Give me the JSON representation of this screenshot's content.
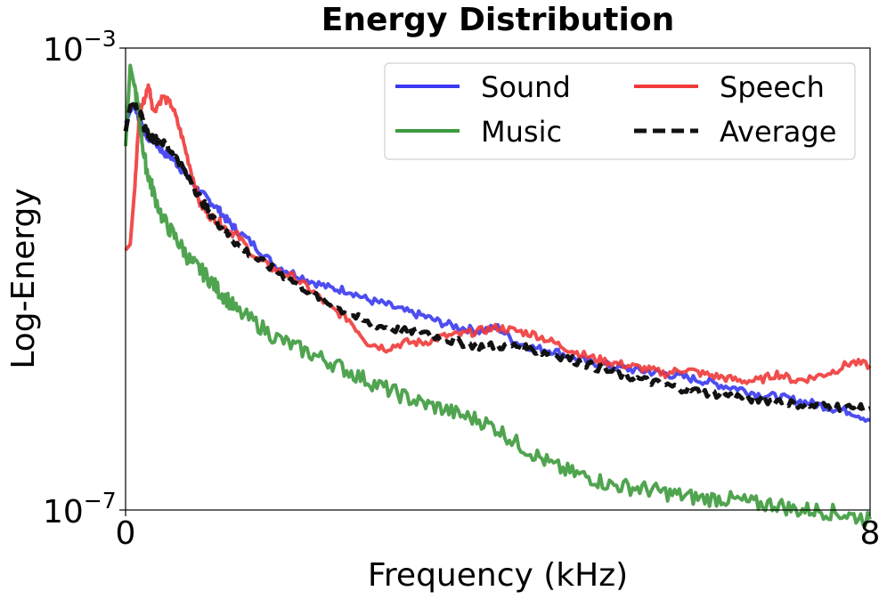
{
  "chart_data": {
    "type": "line",
    "title": "Energy Distribution",
    "xlabel": "Frequency (kHz)",
    "ylabel": "Log-Energy",
    "xlim": [
      0,
      8
    ],
    "ylim_log10": [
      -7,
      -3
    ],
    "x_ticks": [
      {
        "value": 0,
        "label": "0"
      },
      {
        "value": 8,
        "label": "8"
      }
    ],
    "y_ticks": [
      {
        "value": -3,
        "base": "10",
        "exp": "−3"
      },
      {
        "value": -7,
        "base": "10",
        "exp": "−7"
      }
    ],
    "legend_position": "top-right",
    "x": [
      0.0,
      0.05,
      0.1,
      0.15,
      0.2,
      0.25,
      0.3,
      0.4,
      0.5,
      0.6,
      0.7,
      0.8,
      0.9,
      1.0,
      1.1,
      1.2,
      1.4,
      1.6,
      1.8,
      2.0,
      2.2,
      2.4,
      2.6,
      2.8,
      3.0,
      3.2,
      3.4,
      3.6,
      3.8,
      4.0,
      4.2,
      4.4,
      4.6,
      4.8,
      5.0,
      5.2,
      5.4,
      5.6,
      5.8,
      6.0,
      6.2,
      6.4,
      6.6,
      6.8,
      7.0,
      7.2,
      7.4,
      7.6,
      7.8,
      8.0
    ],
    "series": [
      {
        "name": "Sound",
        "color": "#3a3af0",
        "dash": "solid",
        "values": [
          -3.65,
          -3.55,
          -3.5,
          -3.62,
          -3.72,
          -3.78,
          -3.8,
          -3.9,
          -3.95,
          -4.05,
          -4.15,
          -4.25,
          -4.32,
          -4.4,
          -4.5,
          -4.58,
          -4.72,
          -4.88,
          -4.95,
          -5.02,
          -5.08,
          -5.1,
          -5.18,
          -5.22,
          -5.28,
          -5.32,
          -5.38,
          -5.42,
          -5.45,
          -5.42,
          -5.55,
          -5.6,
          -5.62,
          -5.68,
          -5.72,
          -5.75,
          -5.78,
          -5.8,
          -5.82,
          -5.85,
          -5.88,
          -5.92,
          -5.95,
          -6.0,
          -6.02,
          -6.05,
          -6.08,
          -6.12,
          -6.15,
          -6.22
        ]
      },
      {
        "name": "Speech",
        "color": "#f03a3a",
        "dash": "solid",
        "values": [
          -4.75,
          -4.7,
          -4.2,
          -3.55,
          -3.45,
          -3.32,
          -3.55,
          -3.42,
          -3.5,
          -3.75,
          -4.05,
          -4.35,
          -4.45,
          -4.5,
          -4.58,
          -4.62,
          -4.82,
          -4.92,
          -4.98,
          -5.1,
          -5.25,
          -5.35,
          -5.55,
          -5.6,
          -5.55,
          -5.55,
          -5.5,
          -5.48,
          -5.45,
          -5.42,
          -5.45,
          -5.48,
          -5.55,
          -5.62,
          -5.68,
          -5.72,
          -5.75,
          -5.78,
          -5.82,
          -5.78,
          -5.82,
          -5.85,
          -5.88,
          -5.88,
          -5.82,
          -5.88,
          -5.85,
          -5.8,
          -5.72,
          -5.75
        ]
      },
      {
        "name": "Music",
        "color": "#3d9a3d",
        "dash": "solid",
        "values": [
          -3.85,
          -3.15,
          -3.35,
          -3.6,
          -3.95,
          -4.12,
          -4.25,
          -4.48,
          -4.6,
          -4.72,
          -4.85,
          -4.92,
          -5.0,
          -5.1,
          -5.18,
          -5.28,
          -5.38,
          -5.5,
          -5.58,
          -5.65,
          -5.72,
          -5.8,
          -5.88,
          -5.95,
          -6.02,
          -6.08,
          -6.12,
          -6.18,
          -6.22,
          -6.3,
          -6.42,
          -6.52,
          -6.62,
          -6.68,
          -6.72,
          -6.78,
          -6.8,
          -6.82,
          -6.85,
          -6.88,
          -6.9,
          -6.9,
          -6.92,
          -6.95,
          -6.95,
          -7.0,
          -7.0,
          -7.02,
          -7.05,
          -7.08
        ]
      },
      {
        "name": "Average",
        "color": "#111111",
        "dash": "dashed",
        "values": [
          -3.72,
          -3.5,
          -3.48,
          -3.55,
          -3.68,
          -3.75,
          -3.78,
          -3.82,
          -3.9,
          -4.02,
          -4.15,
          -4.3,
          -4.42,
          -4.52,
          -4.62,
          -4.7,
          -4.82,
          -4.92,
          -5.02,
          -5.12,
          -5.22,
          -5.3,
          -5.38,
          -5.42,
          -5.45,
          -5.45,
          -5.52,
          -5.55,
          -5.58,
          -5.58,
          -5.58,
          -5.62,
          -5.65,
          -5.7,
          -5.75,
          -5.8,
          -5.85,
          -5.88,
          -5.92,
          -5.95,
          -5.98,
          -6.0,
          -6.02,
          -6.05,
          -6.05,
          -6.08,
          -6.1,
          -6.1,
          -6.12,
          -6.12
        ]
      }
    ]
  }
}
